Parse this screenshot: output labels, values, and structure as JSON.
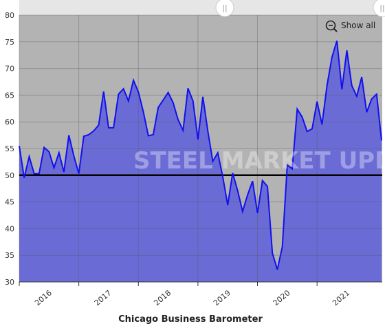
{
  "chart_data": {
    "type": "area",
    "title": "Chicago Business Barometer",
    "watermark": "STEEL MARKET UPDATE",
    "button": "Show all",
    "x": [
      2016,
      2016.083,
      2016.167,
      2016.25,
      2016.333,
      2016.417,
      2016.5,
      2016.583,
      2016.667,
      2016.75,
      2016.833,
      2016.917,
      2017,
      2017.083,
      2017.167,
      2017.25,
      2017.333,
      2017.417,
      2017.5,
      2017.583,
      2017.667,
      2017.75,
      2017.833,
      2017.917,
      2018,
      2018.083,
      2018.167,
      2018.25,
      2018.333,
      2018.417,
      2018.5,
      2018.583,
      2018.667,
      2018.75,
      2018.833,
      2018.917,
      2019,
      2019.083,
      2019.167,
      2019.25,
      2019.333,
      2019.417,
      2019.5,
      2019.583,
      2019.667,
      2019.75,
      2019.833,
      2019.917,
      2020,
      2020.083,
      2020.167,
      2020.25,
      2020.333,
      2020.417,
      2020.5,
      2020.583,
      2020.667,
      2020.75,
      2020.833,
      2020.917,
      2021,
      2021.083,
      2021.167,
      2021.25,
      2021.333,
      2021.417,
      2021.5,
      2021.583,
      2021.667,
      2021.75,
      2021.833,
      2021.917,
      2022,
      2022.083
    ],
    "series": [
      {
        "name": "Chicago Business Barometer",
        "color": "#1010f0",
        "fill": "#6b6bd6",
        "values": [
          55.5,
          49.5,
          53.5,
          50.3,
          50.3,
          55.2,
          54.4,
          51.4,
          54.2,
          50.6,
          57.5,
          53.6,
          50.3,
          57.3,
          57.6,
          58.3,
          59.4,
          65.7,
          58.9,
          58.9,
          65.2,
          66.2,
          63.9,
          67.8,
          65.6,
          61.9,
          57.4,
          57.6,
          62.7,
          64.1,
          65.5,
          63.6,
          60.4,
          58.4,
          66.3,
          63.9,
          56.7,
          64.7,
          58.2,
          52.6,
          54.2,
          49.7,
          44.4,
          50.4,
          47.1,
          43.2,
          46.3,
          48.9,
          42.9,
          49.0,
          47.9,
          35.4,
          32.3,
          36.6,
          51.9,
          51.2,
          62.4,
          60.9,
          58.2,
          58.7,
          63.8,
          59.5,
          66.8,
          72.1,
          75.2,
          66.1,
          73.4,
          66.8,
          64.8,
          68.4,
          61.8,
          64.3,
          65.2,
          56.5
        ]
      }
    ],
    "reference_line": 50,
    "xlim": [
      2016,
      2022.083
    ],
    "xticks": [
      2016,
      2017,
      2018,
      2019,
      2020,
      2021
    ],
    "ylim": [
      30,
      80
    ],
    "yticks": [
      30,
      35,
      40,
      45,
      50,
      55,
      60,
      65,
      70,
      75,
      80
    ],
    "grid": true
  }
}
